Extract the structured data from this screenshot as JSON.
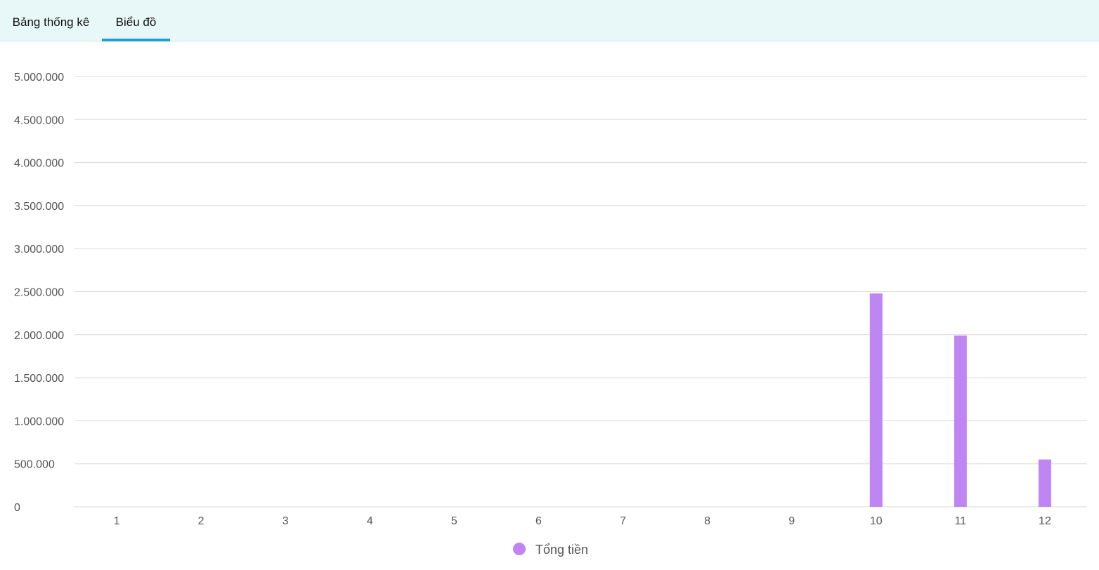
{
  "tabs": [
    {
      "label": "Bảng thống kê",
      "active": false
    },
    {
      "label": "Biểu đồ",
      "active": true
    }
  ],
  "colors": {
    "tabbar_bg": "#e8f8f8",
    "tab_active_underline": "#1d9fd6",
    "bar": "#bf85f2",
    "grid": "#d9d9d9",
    "axis_text": "#555555"
  },
  "chart_data": {
    "type": "bar",
    "categories": [
      "1",
      "2",
      "3",
      "4",
      "5",
      "6",
      "7",
      "8",
      "9",
      "10",
      "11",
      "12"
    ],
    "series": [
      {
        "name": "Tổng tiền",
        "values": [
          0,
          0,
          0,
          0,
          0,
          0,
          0,
          0,
          0,
          2480000,
          1990000,
          550000
        ]
      }
    ],
    "ylim": [
      0,
      5000000
    ],
    "yticks": [
      0,
      500000,
      1000000,
      1500000,
      2000000,
      2500000,
      3000000,
      3500000,
      4000000,
      4500000,
      5000000
    ],
    "ytick_labels": [
      "0",
      "500.000",
      "1.000.000",
      "1.500.000",
      "2.000.000",
      "2.500.000",
      "3.000.000",
      "3.500.000",
      "4.000.000",
      "4.500.000",
      "5.000.000"
    ],
    "grid": true,
    "legend_position": "bottom"
  }
}
